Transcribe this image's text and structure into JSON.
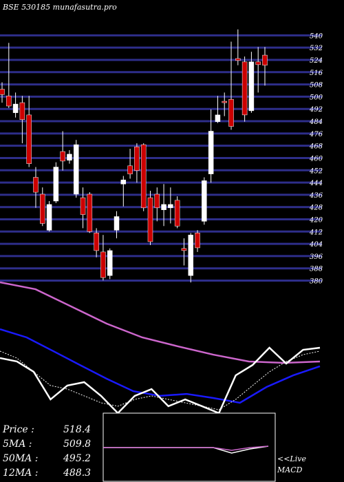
{
  "chart_data": [
    {
      "type": "candlestick",
      "title": "BSE 530185 munafasutra.pro",
      "open": [
        504.9,
        500.5,
        489.5,
        496.1,
        488.1,
        447.4,
        436.4,
        412.9,
        431.9,
        464.2,
        458.5,
        436.4,
        434.1,
        436.4,
        411.1,
        398.7,
        383.3,
        412.9,
        443.0,
        454.9,
        467.3,
        468.7,
        434.1,
        436.4,
        426.2,
        427.5,
        432.4,
        401.0,
        383.3,
        411.1,
        418.7,
        449.6,
        483.7,
        497.0,
        498.3,
        524.9,
        522.7,
        490.8,
        522.7,
        527.1
      ],
      "high": [
        509.4,
        535.1,
        502.7,
        500.5,
        500.5,
        454.1,
        440.8,
        431.9,
        457.2,
        477.5,
        465.1,
        471.8,
        440.8,
        437.7,
        414.2,
        409.8,
        401.0,
        425.3,
        448.3,
        466.0,
        469.6,
        469.6,
        438.6,
        440.8,
        443.0,
        440.8,
        435.0,
        407.6,
        411.1,
        412.9,
        447.4,
        491.7,
        500.5,
        502.7,
        535.9,
        543.9,
        526.2,
        529.3,
        532.4,
        532.4
      ],
      "low": [
        496.1,
        492.6,
        486.4,
        469.6,
        454.1,
        427.5,
        415.6,
        412.0,
        430.6,
        451.8,
        456.3,
        434.1,
        414.2,
        411.1,
        395.2,
        380.1,
        381.0,
        407.6,
        428.4,
        446.5,
        443.9,
        425.3,
        403.2,
        418.7,
        415.6,
        417.3,
        414.2,
        389.9,
        378.8,
        398.7,
        416.5,
        443.9,
        482.8,
        487.3,
        478.4,
        520.5,
        483.7,
        489.5,
        502.7,
        507.2
      ],
      "close": [
        501.4,
        493.9,
        495.2,
        485.0,
        456.3,
        437.7,
        417.3,
        429.7,
        454.1,
        458.0,
        462.5,
        468.7,
        423.1,
        412.0,
        399.6,
        382.0,
        399.6,
        421.8,
        445.7,
        449.6,
        451.8,
        427.5,
        405.4,
        427.5,
        429.7,
        429.7,
        415.6,
        399.6,
        409.8,
        401.4,
        445.2,
        477.5,
        488.1,
        496.1,
        480.6,
        523.6,
        488.1,
        522.7,
        520.9,
        520.5
      ],
      "up_color": "#ffffff",
      "down_color": "#cc0000",
      "ylim": [
        378,
        546
      ],
      "yticks": [
        380,
        388,
        396,
        404,
        412,
        420,
        428,
        436,
        444,
        452,
        460,
        468,
        476,
        484,
        492,
        500,
        508,
        516,
        524,
        532,
        540
      ],
      "grid": true,
      "grid_color": "#2e2e8a"
    },
    {
      "type": "line",
      "ylim": [
        0,
        100
      ],
      "series": [
        {
          "color": "#cc66cc",
          "values": [
            100,
            94.7,
            81.6,
            68.4,
            57.9,
            51.1,
            44.7,
            39.5,
            38.4,
            39.5
          ]
        },
        {
          "color": "#1a1aff",
          "values": [
            64.2,
            57.9,
            47.4,
            36.8,
            26.3,
            16.8,
            13.2,
            14.7,
            11.6,
            7.9,
            20,
            28.9,
            35.8
          ]
        },
        {
          "color": "#ffffff",
          "values": [
            42.1,
            39.5,
            31.6,
            10.5,
            21.1,
            23.7,
            13.2,
            0,
            13.2,
            18.4,
            5.3,
            10.5,
            5.3,
            0,
            28.9,
            36.8,
            50,
            37.9,
            48.4,
            50
          ]
        },
        {
          "color": "#ffffff",
          "dashed": true,
          "values": [
            47.4,
            42.1,
            31.6,
            21.1,
            18.4,
            13.2,
            7.9,
            5.3,
            10.5,
            13.2,
            10.5,
            7.9,
            5.3,
            2.6,
            10.5,
            21.1,
            31.6,
            39.5,
            44.7,
            47.4
          ]
        }
      ]
    },
    {
      "type": "macd",
      "ylim": [
        -25,
        25
      ],
      "label": "<<Live",
      "sublabel": "MACD",
      "series": [
        {
          "color": "#ffffff",
          "values": [
            0,
            0,
            0,
            0,
            0,
            0,
            0,
            -4,
            -1,
            1
          ]
        },
        {
          "color": "#cc66cc",
          "values": [
            0,
            0,
            0,
            0,
            0,
            0,
            0,
            -2,
            0,
            1
          ]
        }
      ]
    }
  ],
  "readout": [
    {
      "label": "Price   :",
      "value": 518.4
    },
    {
      "label": "5MA :",
      "value": 509.8
    },
    {
      "label": "50MA :",
      "value": 495.2
    },
    {
      "label": "12MA :",
      "value": 488.3
    }
  ]
}
